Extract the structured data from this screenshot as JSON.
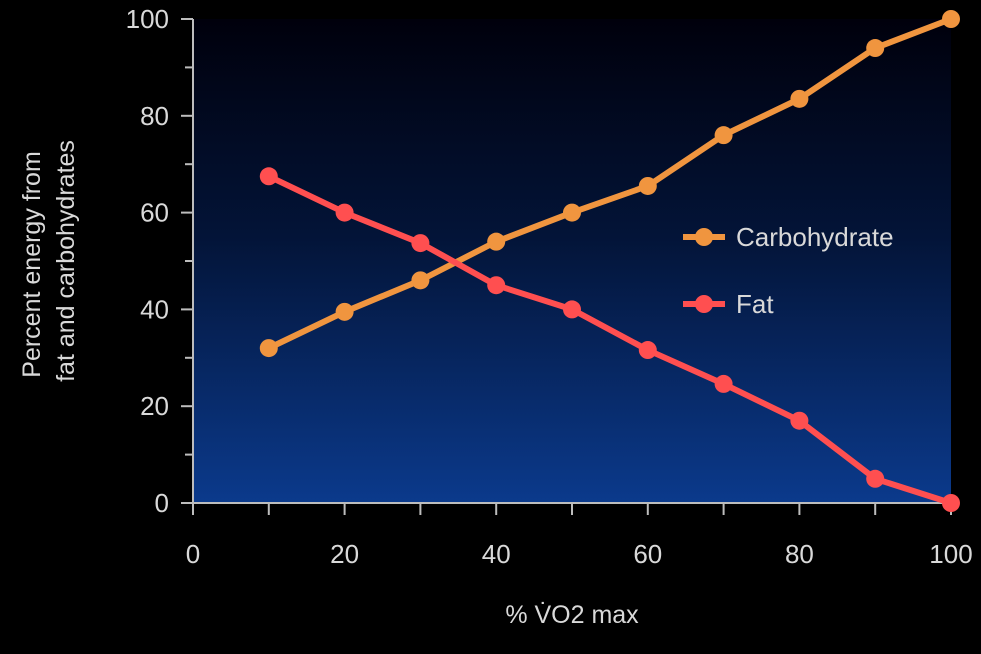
{
  "chart_data": {
    "type": "line",
    "title": "",
    "xlabel": "% V̇O2 max",
    "xlabel_parts": {
      "prefix": "% V̇O",
      "sub": "2",
      "suffix": " max"
    },
    "ylabel_lines": [
      "Percent energy from",
      "fat and carbohydrates"
    ],
    "xlim": [
      0,
      100
    ],
    "ylim": [
      0,
      100
    ],
    "xticks": [
      "0",
      "20",
      "40",
      "60",
      "80",
      "100"
    ],
    "yticks": [
      "0",
      "20",
      "40",
      "60",
      "80",
      "100"
    ],
    "x": [
      10,
      20,
      30,
      40,
      50,
      60,
      70,
      80,
      90,
      100
    ],
    "series": [
      {
        "name": "Carbohydrate",
        "color": "#f0953f",
        "values": [
          32,
          39.5,
          46,
          54,
          60,
          65.5,
          76,
          83.5,
          94,
          100
        ]
      },
      {
        "name": "Fat",
        "color": "#ff4f50",
        "values": [
          67.5,
          60,
          53.7,
          45,
          40,
          31.6,
          24.6,
          17,
          5,
          0
        ]
      }
    ],
    "legend_placement": "right-center",
    "grid": false
  }
}
